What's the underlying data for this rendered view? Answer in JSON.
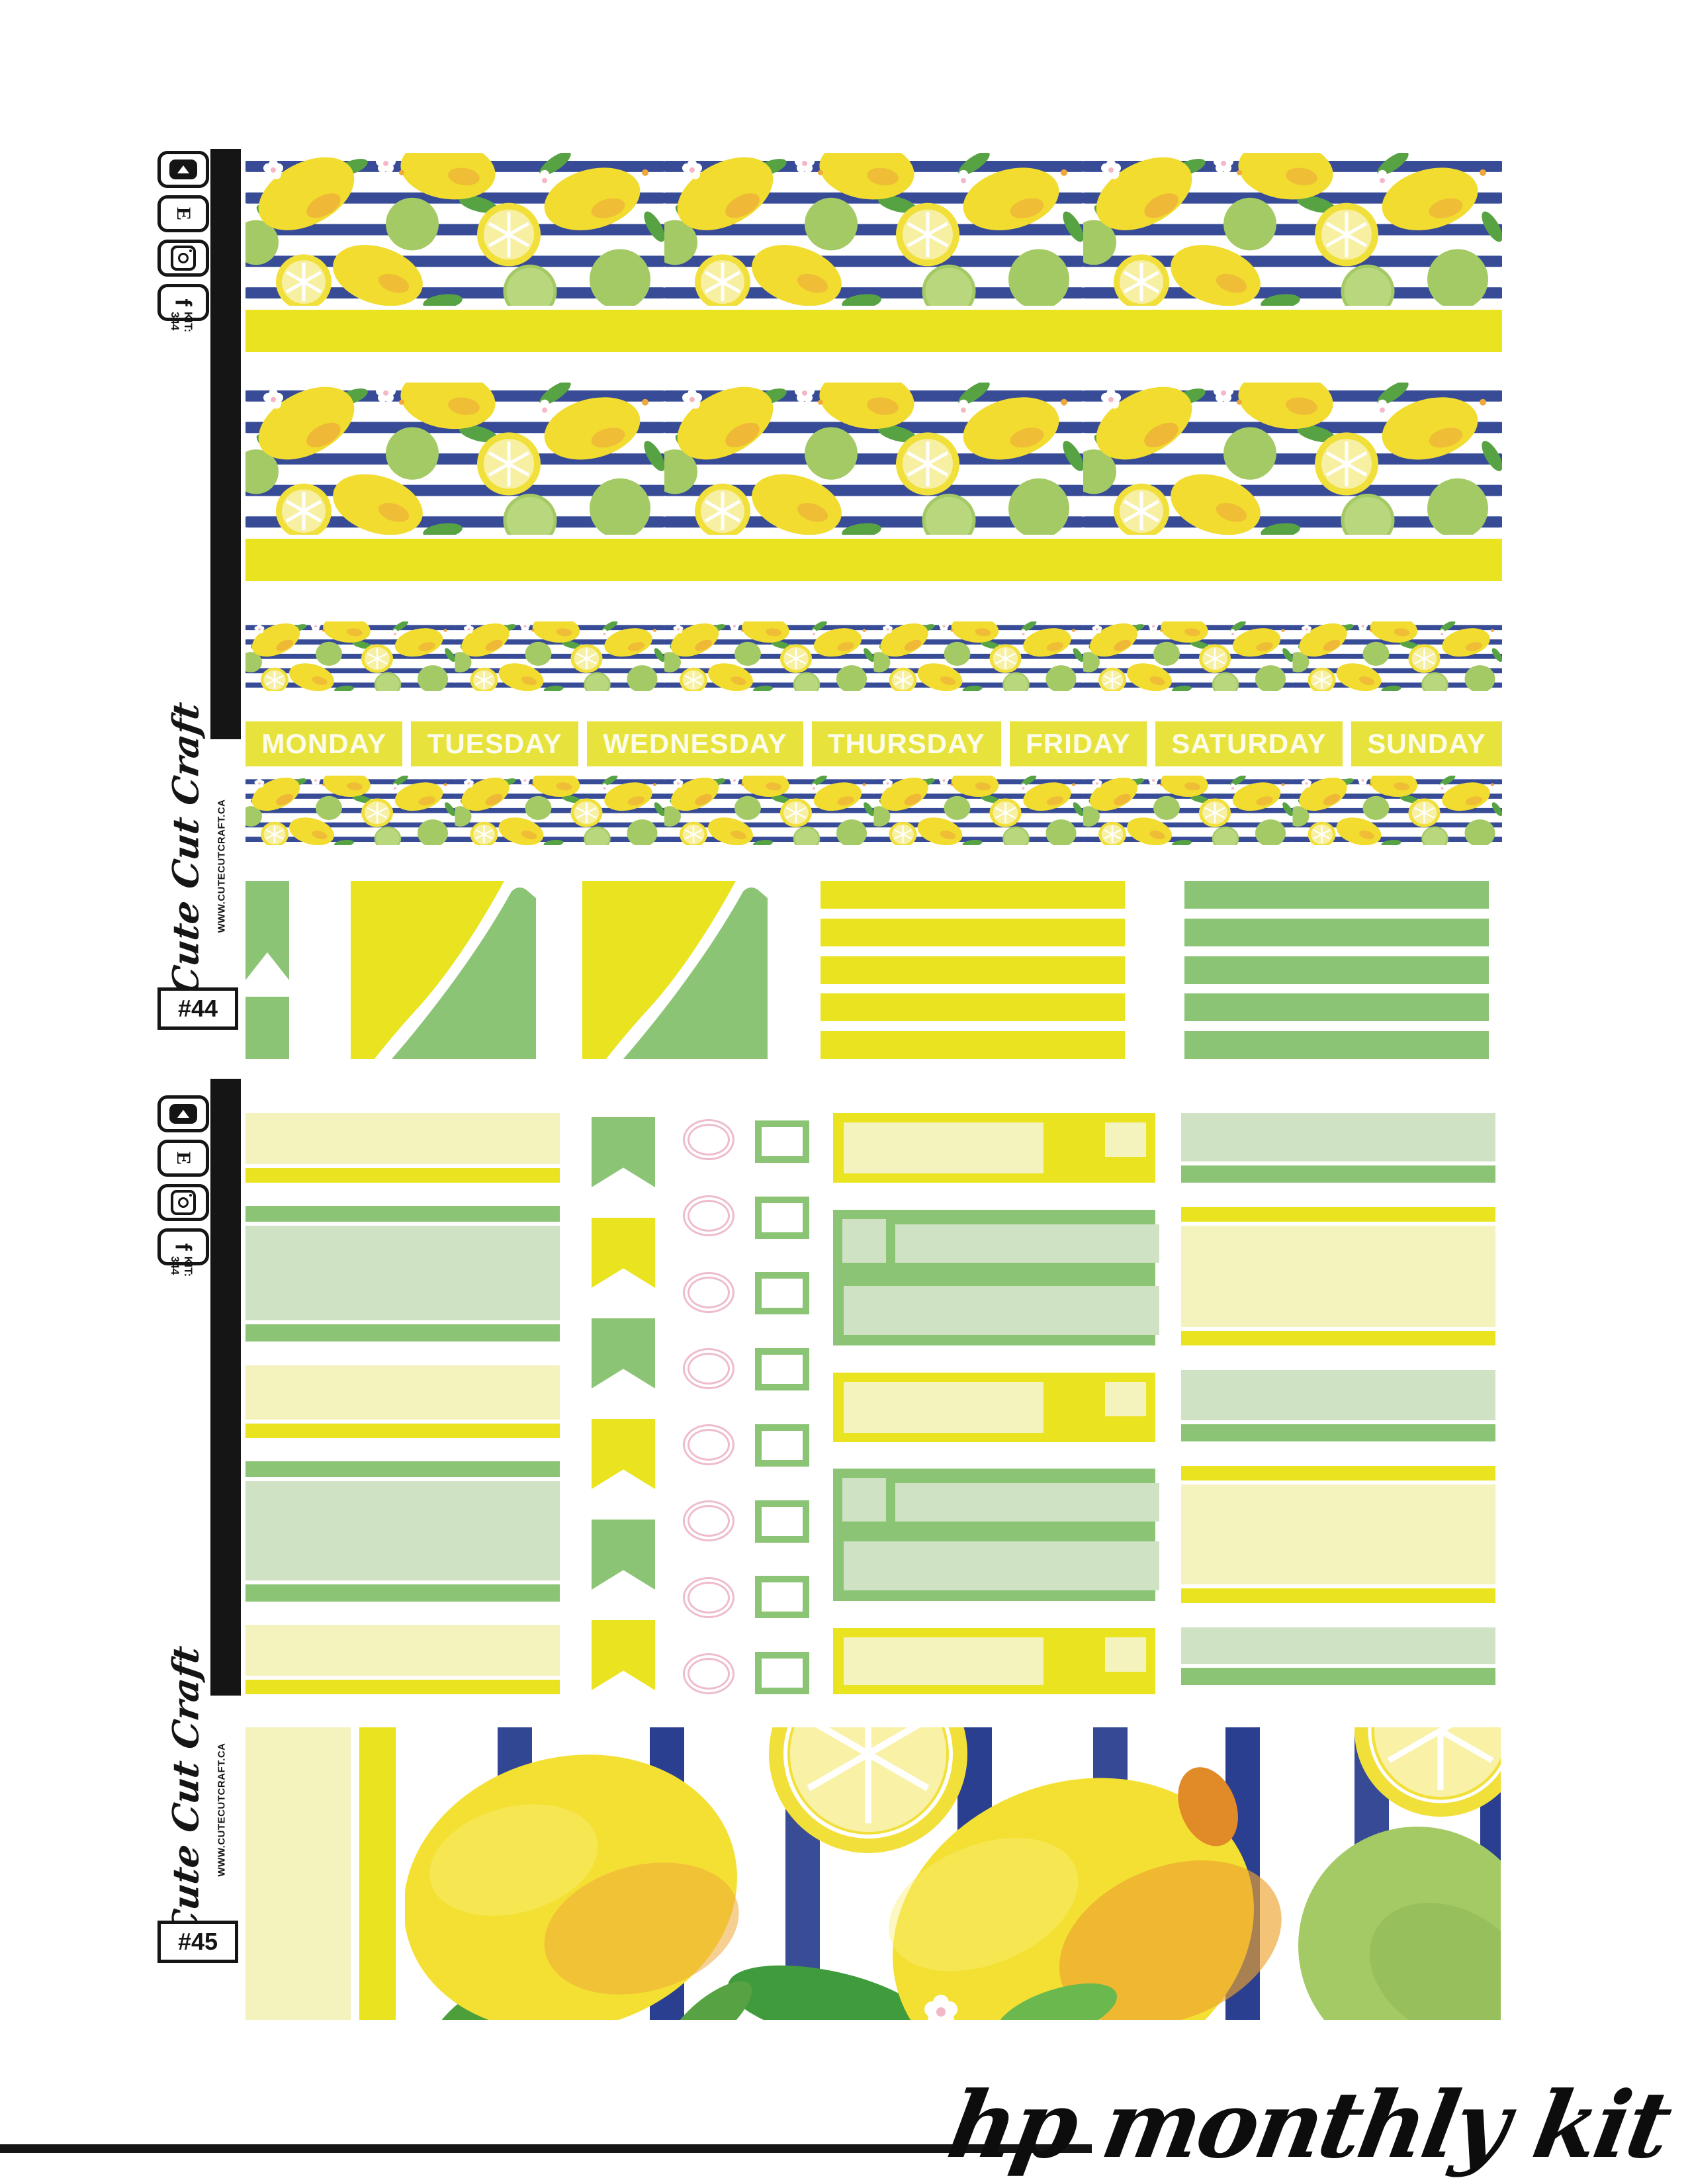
{
  "brand": {
    "script_name": "Cute Cut Craft",
    "website": "WWW.CUTECUTCRAFT.CA",
    "kit_line1": "KIT:",
    "kit_line2": "344"
  },
  "social_icons": [
    {
      "name": "youtube"
    },
    {
      "name": "etsy",
      "letter": "E"
    },
    {
      "name": "instagram"
    },
    {
      "name": "facebook",
      "letter": "f"
    }
  ],
  "sheet44": {
    "number": "#44",
    "week_days": [
      "MONDAY",
      "TUESDAY",
      "WEDNESDAY",
      "THURSDAY",
      "FRIDAY",
      "SATURDAY",
      "SUNDAY"
    ],
    "washi_strip_theme": "watercolor lemons and limes on navy stripes",
    "corner_squares": 2,
    "striped_boxes": [
      {
        "color": "yellow",
        "bars": 5
      },
      {
        "color": "green",
        "bars": 5
      }
    ]
  },
  "sheet45": {
    "number": "#45",
    "left_column_groups": [
      "yellow",
      "green",
      "yellow",
      "green",
      "yellow"
    ],
    "flags": [
      "green",
      "yellow",
      "green",
      "yellow",
      "green",
      "yellow"
    ],
    "circles": 8,
    "checkboxes": 8,
    "outline_boxes": [
      "yellow",
      "green",
      "yellow",
      "green",
      "yellow"
    ],
    "right_column_groups": [
      "green",
      "yellow",
      "green",
      "yellow",
      "green"
    ]
  },
  "footer": {
    "label": "hp monthly kit"
  },
  "colors": {
    "bright_yellow": "#e9e41f",
    "header_yellow": "#e7e33c",
    "pale_yellow": "#f4f2bd",
    "green": "#8cc475",
    "pale_green": "#cfe2c3",
    "pink": "#eebccb",
    "navy": "#2a3f8f",
    "ink": "#151515"
  }
}
